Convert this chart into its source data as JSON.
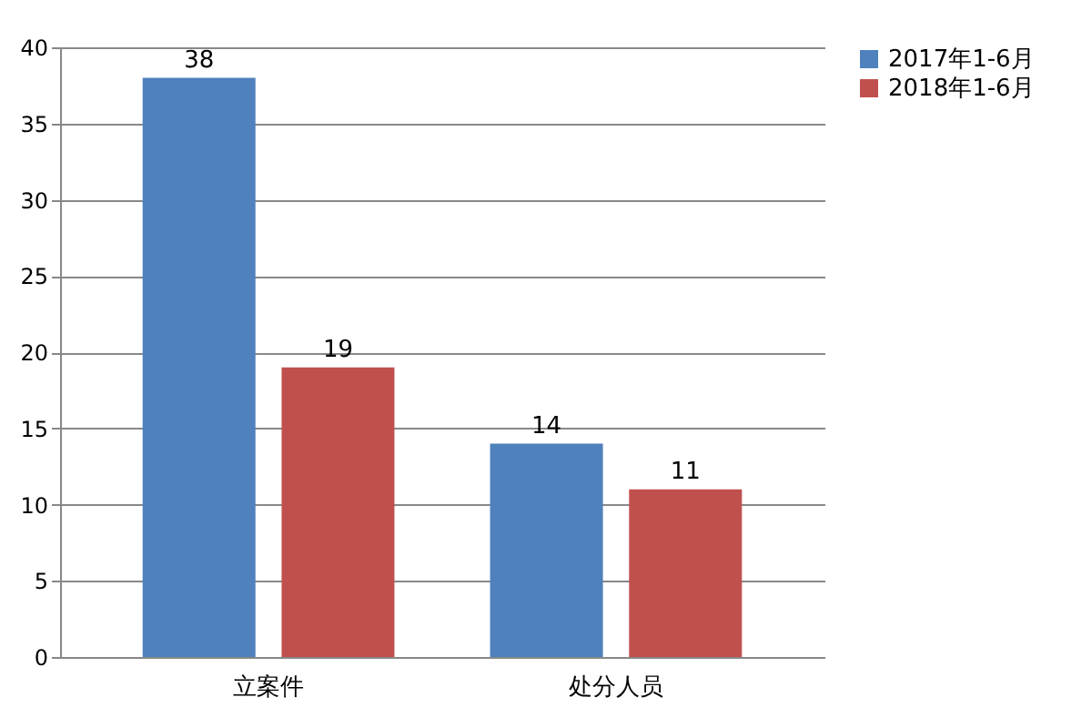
{
  "chart_data": {
    "type": "bar",
    "categories": [
      "立案件",
      "处分人员"
    ],
    "series": [
      {
        "name": "2017年1-6月",
        "color": "#4f81bd",
        "values": [
          38,
          14
        ]
      },
      {
        "name": "2018年1-6月",
        "color": "#c0504d",
        "values": [
          19,
          11
        ]
      }
    ],
    "ylim": [
      0,
      40
    ],
    "yticks": [
      0,
      5,
      10,
      15,
      20,
      25,
      30,
      35,
      40
    ],
    "grid": "y",
    "legend": "right",
    "data_labels": true
  }
}
